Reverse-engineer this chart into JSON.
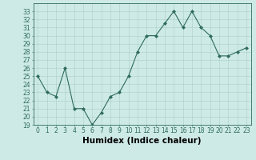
{
  "title": "",
  "xlabel": "Humidex (Indice chaleur)",
  "ylabel": "",
  "x": [
    0,
    1,
    2,
    3,
    4,
    5,
    6,
    7,
    8,
    9,
    10,
    11,
    12,
    13,
    14,
    15,
    16,
    17,
    18,
    19,
    20,
    21,
    22,
    23
  ],
  "y": [
    25,
    23,
    22.5,
    26,
    21,
    21,
    19,
    20.5,
    22.5,
    23,
    25,
    28,
    30,
    30,
    31.5,
    33,
    31,
    33,
    31,
    30,
    27.5,
    27.5,
    28,
    28.5
  ],
  "line_color": "#2e6b5e",
  "marker_color": "#2e6b5e",
  "bg_color": "#ceeae6",
  "grid_color": "#aacfcb",
  "ylim": [
    19,
    34
  ],
  "yticks": [
    19,
    20,
    21,
    22,
    23,
    24,
    25,
    26,
    27,
    28,
    29,
    30,
    31,
    32,
    33
  ],
  "xlim": [
    -0.5,
    23.5
  ],
  "xticks": [
    0,
    1,
    2,
    3,
    4,
    5,
    6,
    7,
    8,
    9,
    10,
    11,
    12,
    13,
    14,
    15,
    16,
    17,
    18,
    19,
    20,
    21,
    22,
    23
  ],
  "tick_fontsize": 5.5,
  "label_fontsize": 7.5
}
